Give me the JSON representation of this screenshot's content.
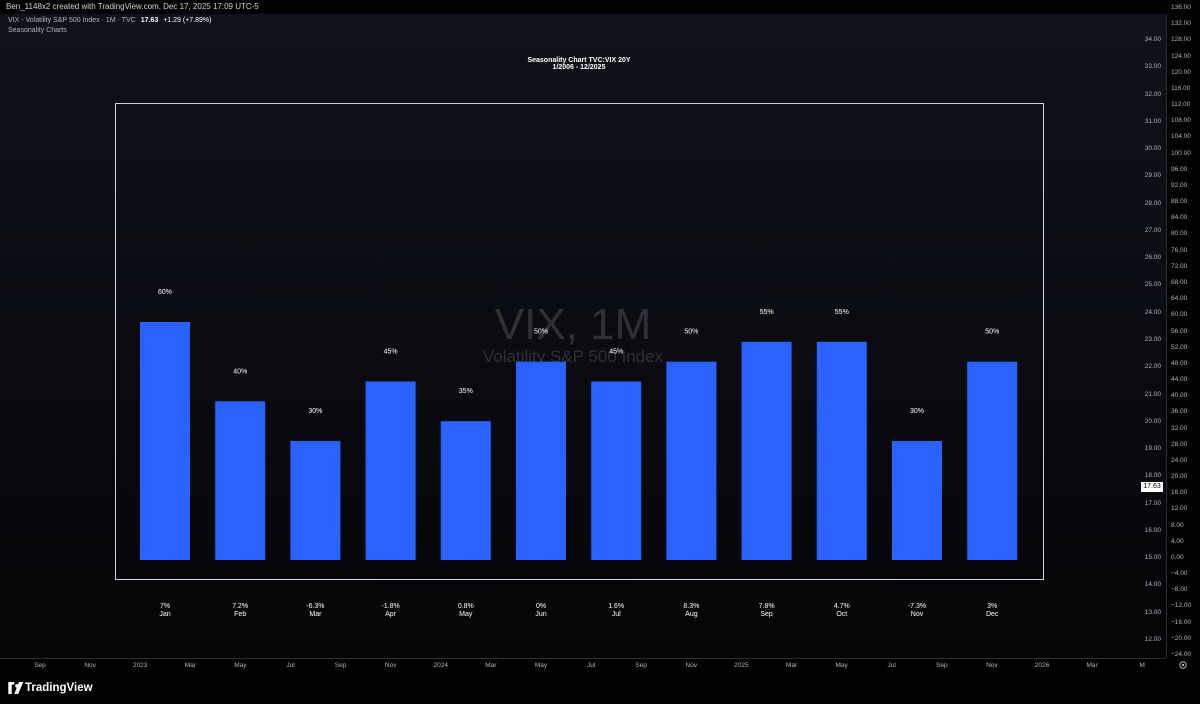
{
  "header": {
    "created_text": "Ben_1148x2 created with TradingView.com, Dec 17, 2025 17:09 UTC-5"
  },
  "symbol_info": {
    "description": "VIX - Volatility S&P 500 Index · 1M · TVC",
    "last": "17.63",
    "change": "+1.29 (+7.89%)"
  },
  "indicator": {
    "name": "Seasonality Charts"
  },
  "watermark": {
    "symbol": "VIX, 1M",
    "name": "Volatility S&P 500 Index"
  },
  "chart_data": {
    "type": "bar",
    "title": "Seasonality Chart TVC:VIX 20Y",
    "subtitle": "1/2006 - 12/2025",
    "categories": [
      "Jan",
      "Feb",
      "Mar",
      "Apr",
      "May",
      "Jun",
      "Jul",
      "Aug",
      "Sep",
      "Oct",
      "Nov",
      "Dec"
    ],
    "values": [
      60,
      40,
      30,
      45,
      35,
      50,
      45,
      50,
      55,
      55,
      30,
      50
    ],
    "value_labels": [
      "60%",
      "40%",
      "30%",
      "45%",
      "35%",
      "50%",
      "45%",
      "50%",
      "55%",
      "55%",
      "30%",
      "50%"
    ],
    "avg_change_labels": [
      "7%",
      "7.2%",
      "-6.3%",
      "-1.8%",
      "0.8%",
      "0%",
      "1.6%",
      "8.3%",
      "7.8%",
      "4.7%",
      "-7.3%",
      "3%"
    ],
    "bar_color": "#2962ff",
    "ylim": [
      0,
      60
    ],
    "grid": false
  },
  "price_scale": {
    "right_labels": [
      "136.00",
      "132.00",
      "128.00",
      "124.00",
      "120.00",
      "116.00",
      "112.00",
      "108.00",
      "104.00",
      "100.00",
      "96.00",
      "92.00",
      "88.00",
      "84.00",
      "80.00",
      "76.00",
      "72.00",
      "68.00",
      "64.00",
      "60.00",
      "56.00",
      "52.00",
      "48.00",
      "44.00",
      "40.00",
      "36.00",
      "32.00",
      "28.00",
      "24.00",
      "20.00",
      "16.00",
      "12.00",
      "8.00",
      "4.00",
      "0.00",
      "−4.00",
      "−8.00",
      "−12.00",
      "−16.00",
      "−20.00",
      "−24.00"
    ],
    "left_labels": [
      "34.00",
      "33.00",
      "32.00",
      "31.00",
      "30.00",
      "29.00",
      "28.00",
      "27.00",
      "26.00",
      "25.00",
      "24.00",
      "23.00",
      "22.00",
      "21.00",
      "20.00",
      "19.00",
      "18.00",
      "17.00",
      "16.00",
      "15.00",
      "14.00",
      "13.00",
      "12.00"
    ],
    "last_price": "17.63"
  },
  "time_axis": {
    "labels": [
      "Sep",
      "Nov",
      "2023",
      "Mar",
      "May",
      "Jul",
      "Sep",
      "Nov",
      "2024",
      "Mar",
      "May",
      "Jul",
      "Sep",
      "Nov",
      "2025",
      "Mar",
      "May",
      "Jul",
      "Sep",
      "Nov",
      "2026",
      "Mar",
      "M"
    ]
  },
  "footer": {
    "brand": "TradingView"
  },
  "colors": {
    "background": "#000000",
    "bar": "#2962ff",
    "text": "#d1d4dc"
  }
}
